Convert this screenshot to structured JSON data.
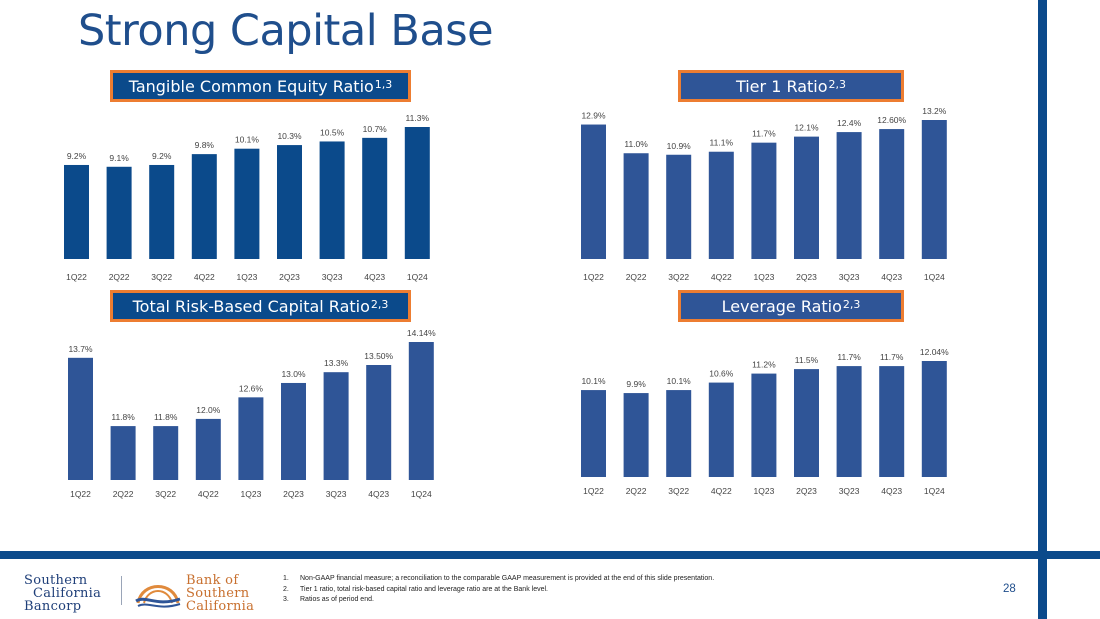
{
  "title": "Strong Capital Base",
  "colors": {
    "primary_bar": "#0b4a8b",
    "secondary_bar": "#2f5597",
    "label_border": "#ed7d31",
    "accent_line": "#0b4a8b"
  },
  "chart_data": [
    {
      "type": "bar",
      "title": "Tangible Common Equity Ratio",
      "title_sup": "1,3",
      "categories": [
        "1Q22",
        "2Q22",
        "3Q22",
        "4Q22",
        "1Q23",
        "2Q23",
        "3Q23",
        "4Q23",
        "1Q24"
      ],
      "values": [
        9.2,
        9.1,
        9.2,
        9.8,
        10.1,
        10.3,
        10.5,
        10.7,
        11.3
      ],
      "data_labels": [
        "9.2%",
        "9.1%",
        "9.2%",
        "9.8%",
        "10.1%",
        "10.3%",
        "10.5%",
        "10.7%",
        "11.3%"
      ],
      "ylim": [
        4,
        11.3
      ],
      "xlabel": "",
      "ylabel": "",
      "grid": false,
      "legend": "none"
    },
    {
      "type": "bar",
      "title": "Tier 1 Ratio",
      "title_sup": "2,3",
      "categories": [
        "1Q22",
        "2Q22",
        "3Q22",
        "4Q22",
        "1Q23",
        "2Q23",
        "3Q23",
        "4Q23",
        "1Q24"
      ],
      "values": [
        12.9,
        11.0,
        10.9,
        11.1,
        11.7,
        12.1,
        12.4,
        12.6,
        13.2
      ],
      "data_labels": [
        "12.9%",
        "11.0%",
        "10.9%",
        "11.1%",
        "11.7%",
        "12.1%",
        "12.4%",
        "12.60%",
        "13.2%"
      ],
      "ylim": [
        4,
        13.2
      ],
      "xlabel": "",
      "ylabel": "",
      "grid": false,
      "legend": "none"
    },
    {
      "type": "bar",
      "title": "Total Risk-Based Capital Ratio",
      "title_sup": "2,3",
      "categories": [
        "1Q22",
        "2Q22",
        "3Q22",
        "4Q22",
        "1Q23",
        "2Q23",
        "3Q23",
        "4Q23",
        "1Q24"
      ],
      "values": [
        13.7,
        11.8,
        11.8,
        12.0,
        12.6,
        13.0,
        13.3,
        13.5,
        14.14
      ],
      "data_labels": [
        "13.7%",
        "11.8%",
        "11.8%",
        "12.0%",
        "12.6%",
        "13.0%",
        "13.3%",
        "13.50%",
        "14.14%"
      ],
      "ylim": [
        10.3,
        14.14
      ],
      "xlabel": "",
      "ylabel": "",
      "grid": false,
      "legend": "none"
    },
    {
      "type": "bar",
      "title": "Leverage Ratio",
      "title_sup": "2,3",
      "categories": [
        "1Q22",
        "2Q22",
        "3Q22",
        "4Q22",
        "1Q23",
        "2Q23",
        "3Q23",
        "4Q23",
        "1Q24"
      ],
      "values": [
        10.1,
        9.9,
        10.1,
        10.6,
        11.2,
        11.5,
        11.7,
        11.7,
        12.04
      ],
      "data_labels": [
        "10.1%",
        "9.9%",
        "10.1%",
        "10.6%",
        "11.2%",
        "11.5%",
        "11.7%",
        "11.7%",
        "12.04%"
      ],
      "ylim": [
        4.3,
        12.04
      ],
      "xlabel": "",
      "ylabel": "",
      "grid": false,
      "legend": "none"
    }
  ],
  "footer": {
    "logo_left": [
      "Southern",
      "California",
      "Bancorp"
    ],
    "logo_right": [
      "Bank of",
      "Southern",
      "California"
    ],
    "footnotes": [
      {
        "num": "1.",
        "text": "Non-GAAP financial measure; a reconciliation to the comparable GAAP measurement is provided at the end of this slide presentation."
      },
      {
        "num": "2.",
        "text": "Tier 1 ratio, total risk-based capital ratio and leverage ratio are at the Bank level."
      },
      {
        "num": "3.",
        "text": "Ratios as of period end."
      }
    ],
    "page_number": "28"
  }
}
